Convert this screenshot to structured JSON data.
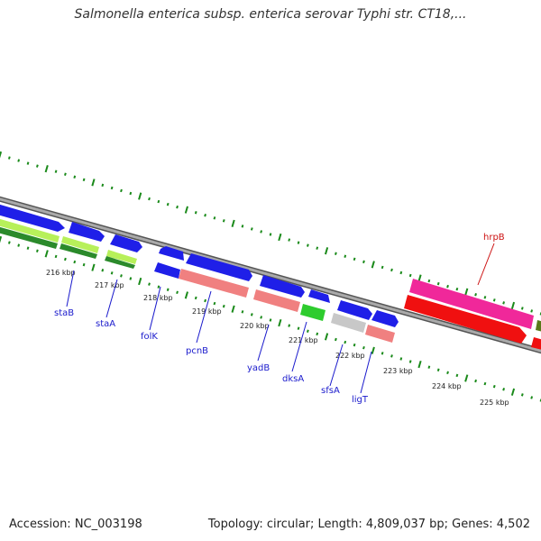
{
  "title": "Salmonella enterica subsp. enterica serovar Typhi str. CT18,...",
  "footer": {
    "accession": "Accession: NC_003198",
    "summary": "Topology: circular; Length: 4,809,037 bp; Genes: 4,502"
  },
  "scale_labels": [
    "216 kbp",
    "217 kbp",
    "218 kbp",
    "219 kbp",
    "220 kbp",
    "221 kbp",
    "222 kbp",
    "223 kbp",
    "224 kbp",
    "225 kbp"
  ],
  "genes": [
    {
      "name": "staB",
      "color": "#0000ee"
    },
    {
      "name": "staA",
      "color": "#0000ee"
    },
    {
      "name": "folK",
      "color": "#0000ee"
    },
    {
      "name": "pcnB",
      "color": "#0000ee"
    },
    {
      "name": "yadB",
      "color": "#0000ee"
    },
    {
      "name": "dksA",
      "color": "#0000ee"
    },
    {
      "name": "sfsA",
      "color": "#0000ee"
    },
    {
      "name": "ligT",
      "color": "#0000ee"
    },
    {
      "name": "hrpB",
      "color": "#cc1111"
    }
  ],
  "colors": {
    "cds": "#1f1fe8",
    "cog_pink": "#f08080",
    "cog_green": "#2ecc2e",
    "cog_lime": "#b7f05a",
    "cog_dark_green": "#2b8a2b",
    "cog_grey": "#c8c8c8",
    "cog_magenta": "#f0289a",
    "cog_red": "#f01010",
    "backbone": "#888888",
    "tick_green": "#1a8a1a"
  }
}
